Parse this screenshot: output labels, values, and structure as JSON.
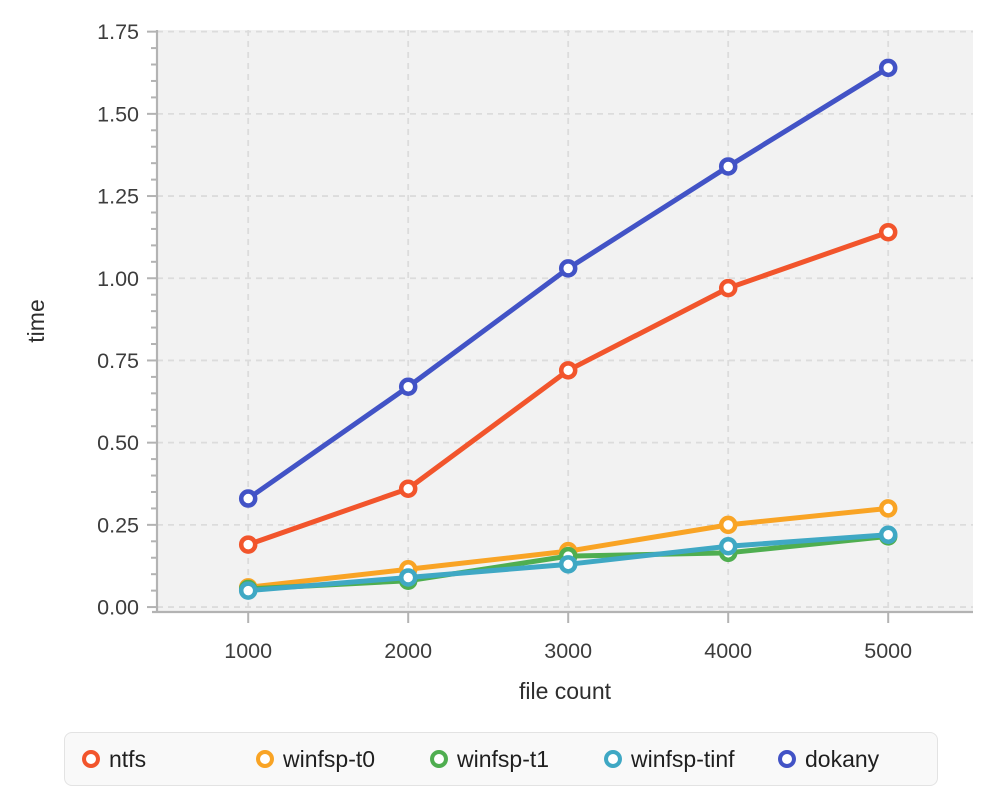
{
  "figure": {
    "background": "#ffffff",
    "plot_background": "#f2f2f2",
    "grid_color": "#dcdcdc",
    "axis_color": "#b3b3b3",
    "tick_label_color": "#3d3d3d",
    "axis_title_color": "#2e2e2e",
    "marker_fill": "#ffffff"
  },
  "chart_data": {
    "type": "line",
    "title": "",
    "xlabel": "file count",
    "ylabel": "time",
    "x": [
      1000,
      2000,
      3000,
      4000,
      5000
    ],
    "xlim": [
      430,
      5530
    ],
    "ylim": [
      -0.015,
      1.755
    ],
    "grid": true,
    "legend_position": "bottom",
    "xticks": {
      "values": [
        1000,
        2000,
        3000,
        4000,
        5000
      ],
      "labels": [
        "1000",
        "2000",
        "3000",
        "4000",
        "5000"
      ]
    },
    "yticks": {
      "values": [
        0,
        0.25,
        0.5,
        0.75,
        1.0,
        1.25,
        1.5,
        1.75
      ],
      "labels": [
        "0.00",
        "0.25",
        "0.50",
        "0.75",
        "1.00",
        "1.25",
        "1.50",
        "1.75"
      ]
    },
    "yminor_step": 0.05,
    "series": [
      {
        "name": "ntfs",
        "color": "#f2552c",
        "values": [
          0.19,
          0.36,
          0.72,
          0.97,
          1.14
        ]
      },
      {
        "name": "winfsp-t0",
        "color": "#f9a425",
        "values": [
          0.06,
          0.115,
          0.17,
          0.25,
          0.3
        ]
      },
      {
        "name": "winfsp-t1",
        "color": "#4fae50",
        "values": [
          0.055,
          0.08,
          0.155,
          0.165,
          0.215
        ]
      },
      {
        "name": "winfsp-tinf",
        "color": "#3fa8c4",
        "values": [
          0.05,
          0.09,
          0.13,
          0.185,
          0.22
        ]
      },
      {
        "name": "dokany",
        "color": "#4253c6",
        "values": [
          0.33,
          0.67,
          1.03,
          1.34,
          1.64
        ]
      }
    ]
  }
}
